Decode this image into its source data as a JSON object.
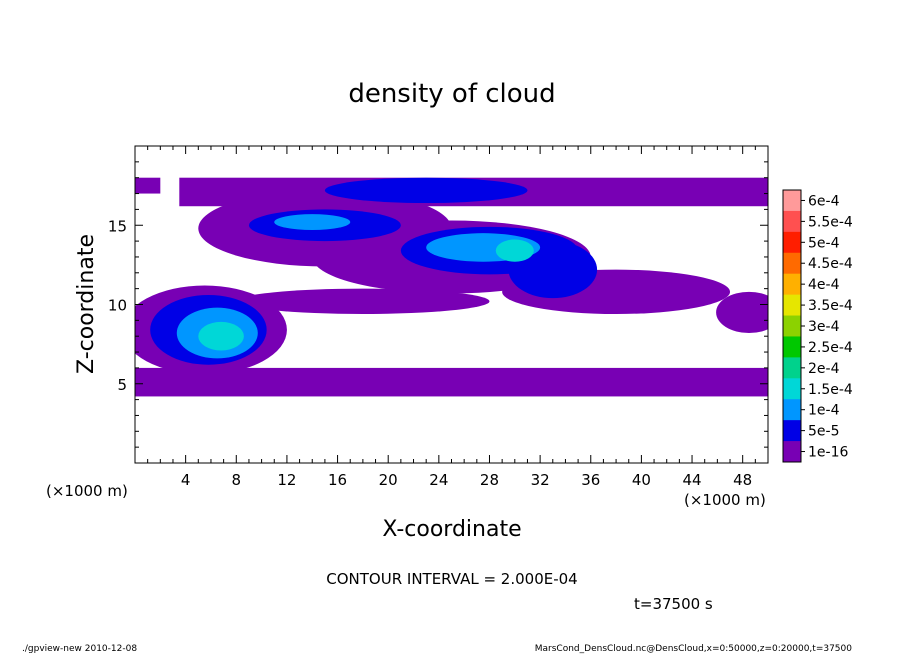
{
  "chart_data": {
    "type": "heatmap",
    "title": "density of cloud",
    "xlabel": "X-coordinate",
    "ylabel": "Z-coordinate",
    "x_unit": "(×1000 m)",
    "y_unit": "(×1000 m)",
    "xlim": [
      0,
      50
    ],
    "ylim": [
      0,
      20
    ],
    "x_ticks": [
      "4",
      "8",
      "12",
      "16",
      "20",
      "24",
      "28",
      "32",
      "36",
      "40",
      "44",
      "48"
    ],
    "y_ticks": [
      "5",
      "10",
      "15"
    ],
    "colorbar": {
      "levels": [
        "6e-4",
        "5.5e-4",
        "5e-4",
        "4.5e-4",
        "4e-4",
        "3.5e-4",
        "3e-4",
        "2.5e-4",
        "2e-4",
        "1.5e-4",
        "1e-4",
        "5e-5",
        "1e-16"
      ],
      "colors": [
        "#ff9a9a",
        "#ff5050",
        "#ff1e00",
        "#ff6a00",
        "#ffb000",
        "#e6e600",
        "#8cd200",
        "#00c800",
        "#00d28c",
        "#00d7d7",
        "#0096ff",
        "#0000e6",
        "#7800b4"
      ]
    },
    "cloud_regions": [
      {
        "x_range": [
          0,
          50
        ],
        "z_range": [
          4.2,
          6.0
        ],
        "peak": "1e-16"
      },
      {
        "x_range": [
          0,
          10
        ],
        "z_range": [
          5.5,
          10.8
        ],
        "peak": "1.5e-4"
      },
      {
        "x_range": [
          16,
          37
        ],
        "z_range": [
          9.5,
          14.5
        ],
        "peak": "1.5e-4"
      },
      {
        "x_range": [
          3,
          50
        ],
        "z_range": [
          14,
          18
        ],
        "peak": "1e-4"
      },
      {
        "x_range": [
          46,
          50
        ],
        "z_range": [
          8,
          10.5
        ],
        "peak": "1e-16"
      }
    ],
    "contour_interval": "CONTOUR INTERVAL = 2.000E-04",
    "time_label": "t=37500 s"
  },
  "footer": {
    "left": "./gpview-new  2010-12-08",
    "right": "MarsCond_DensCloud.nc@DensCloud,x=0:50000,z=0:20000,t=37500"
  }
}
